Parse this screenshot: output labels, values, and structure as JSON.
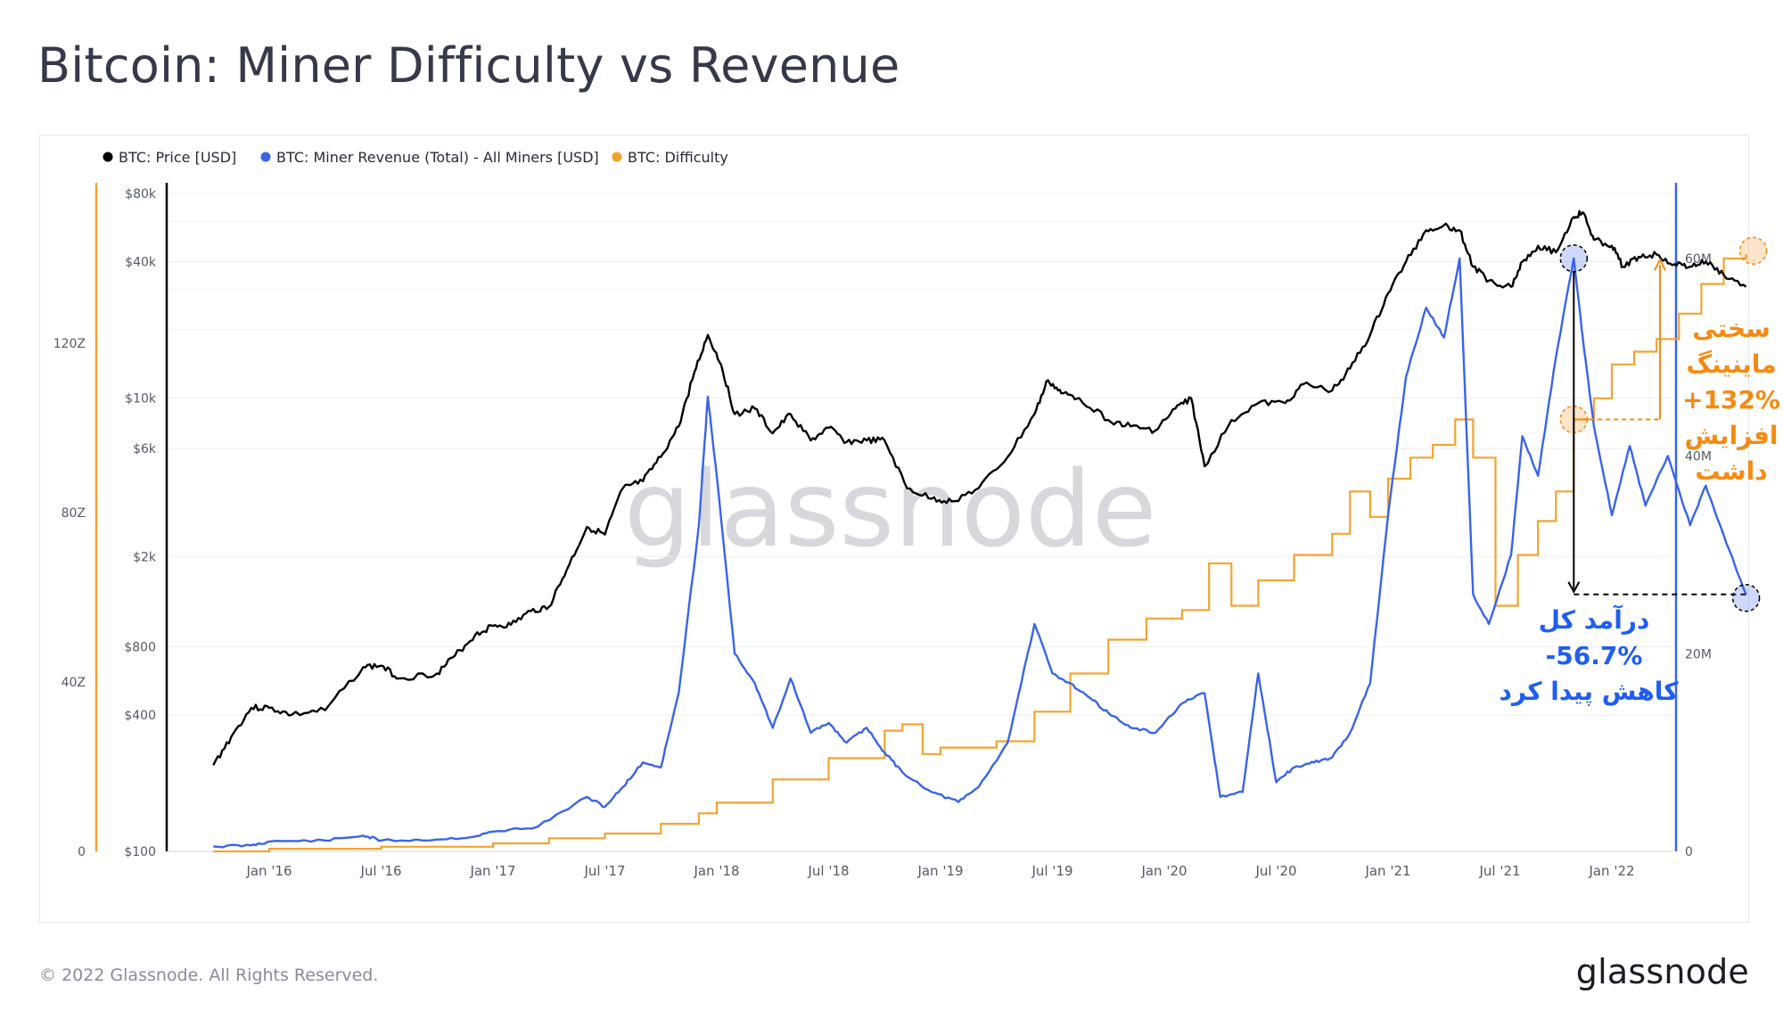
{
  "header": {
    "title": "Bitcoin: Miner Difficulty vs Revenue"
  },
  "footer": {
    "copyright": "© 2022 Glassnode. All Rights Reserved.",
    "brand": "glassnode"
  },
  "watermark": "glassnode",
  "colors": {
    "price": "#000000",
    "revenue": "#3a64e8",
    "difficulty": "#f2a430",
    "anno_orange": "#f58a12",
    "anno_blue": "#1f5ef0"
  },
  "chart_data": {
    "type": "line",
    "legend": [
      {
        "label": "BTC: Price [USD]",
        "color": "#000000"
      },
      {
        "label": "BTC: Miner Revenue (Total) - All Miners [USD]",
        "color": "#3a64e8"
      },
      {
        "label": "BTC: Difficulty",
        "color": "#f2a430"
      }
    ],
    "legend_position": "top-left",
    "x_ticks": [
      "Jan '16",
      "Jul '16",
      "Jan '17",
      "Jul '17",
      "Jan '18",
      "Jul '18",
      "Jan '19",
      "Jul '19",
      "Jan '20",
      "Jul '20",
      "Jan '21",
      "Jul '21",
      "Jan '22"
    ],
    "x_range": [
      2015.75,
      2022.7
    ],
    "price_axis": {
      "scale": "log",
      "range": [
        100,
        80000
      ],
      "ticks": [
        "$100",
        "$400",
        "$800",
        "$2k",
        "$6k",
        "$10k",
        "$40k",
        "$80k"
      ],
      "tick_values": [
        100,
        400,
        800,
        2000,
        6000,
        10000,
        40000,
        80000
      ]
    },
    "difficulty_axis": {
      "range": [
        0,
        160
      ],
      "ticks": [
        "0",
        "40Z",
        "80Z",
        "120Z"
      ],
      "tick_values": [
        0,
        40,
        80,
        120
      ]
    },
    "revenue_axis": {
      "range": [
        0,
        69
      ],
      "ticks": [
        "0",
        "20M",
        "40M",
        "60M"
      ],
      "tick_values": [
        0,
        20,
        40,
        60
      ]
    },
    "series": [
      {
        "name": "BTC: Price [USD]",
        "axis": "price",
        "points": [
          [
            2015.75,
            240
          ],
          [
            2015.83,
            320
          ],
          [
            2015.92,
            430
          ],
          [
            2016.0,
            430
          ],
          [
            2016.1,
            400
          ],
          [
            2016.25,
            420
          ],
          [
            2016.42,
            650
          ],
          [
            2016.5,
            660
          ],
          [
            2016.58,
            580
          ],
          [
            2016.75,
            610
          ],
          [
            2016.83,
            730
          ],
          [
            2016.92,
            900
          ],
          [
            2017.0,
            990
          ],
          [
            2017.08,
            1000
          ],
          [
            2017.17,
            1150
          ],
          [
            2017.25,
            1200
          ],
          [
            2017.33,
            1750
          ],
          [
            2017.42,
            2700
          ],
          [
            2017.5,
            2500
          ],
          [
            2017.58,
            4000
          ],
          [
            2017.67,
            4300
          ],
          [
            2017.75,
            5500
          ],
          [
            2017.83,
            7500
          ],
          [
            2017.9,
            13000
          ],
          [
            2017.96,
            19000
          ],
          [
            2018.02,
            14000
          ],
          [
            2018.08,
            8500
          ],
          [
            2018.17,
            9000
          ],
          [
            2018.25,
            7000
          ],
          [
            2018.33,
            8500
          ],
          [
            2018.42,
            6500
          ],
          [
            2018.5,
            7400
          ],
          [
            2018.58,
            6400
          ],
          [
            2018.67,
            6500
          ],
          [
            2018.75,
            6500
          ],
          [
            2018.85,
            4000
          ],
          [
            2018.96,
            3600
          ],
          [
            2019.05,
            3500
          ],
          [
            2019.17,
            4000
          ],
          [
            2019.3,
            5500
          ],
          [
            2019.42,
            8500
          ],
          [
            2019.48,
            12000
          ],
          [
            2019.54,
            10500
          ],
          [
            2019.62,
            10000
          ],
          [
            2019.75,
            8000
          ],
          [
            2019.85,
            7500
          ],
          [
            2019.96,
            7200
          ],
          [
            2020.05,
            9000
          ],
          [
            2020.12,
            10000
          ],
          [
            2020.18,
            5000
          ],
          [
            2020.3,
            8000
          ],
          [
            2020.42,
            9500
          ],
          [
            2020.54,
            9500
          ],
          [
            2020.62,
            11500
          ],
          [
            2020.75,
            10800
          ],
          [
            2020.83,
            13500
          ],
          [
            2020.92,
            19000
          ],
          [
            2021.0,
            29000
          ],
          [
            2021.08,
            40000
          ],
          [
            2021.17,
            55000
          ],
          [
            2021.25,
            58000
          ],
          [
            2021.32,
            55000
          ],
          [
            2021.38,
            38000
          ],
          [
            2021.45,
            33000
          ],
          [
            2021.55,
            31000
          ],
          [
            2021.6,
            40000
          ],
          [
            2021.67,
            47000
          ],
          [
            2021.75,
            44000
          ],
          [
            2021.83,
            63000
          ],
          [
            2021.87,
            66000
          ],
          [
            2021.92,
            50000
          ],
          [
            2022.0,
            47000
          ],
          [
            2022.05,
            38000
          ],
          [
            2022.12,
            42000
          ],
          [
            2022.2,
            43000
          ],
          [
            2022.28,
            39000
          ],
          [
            2022.35,
            38000
          ],
          [
            2022.42,
            40000
          ],
          [
            2022.5,
            35000
          ],
          [
            2022.6,
            31000
          ]
        ]
      },
      {
        "name": "BTC: Miner Revenue (Total) - All Miners [USD]",
        "axis": "revenue",
        "points": [
          [
            2015.75,
            0.5
          ],
          [
            2015.92,
            0.6
          ],
          [
            2016.0,
            1.0
          ],
          [
            2016.25,
            1.1
          ],
          [
            2016.42,
            1.6
          ],
          [
            2016.5,
            1.1
          ],
          [
            2016.75,
            1.2
          ],
          [
            2016.92,
            1.5
          ],
          [
            2017.0,
            2.0
          ],
          [
            2017.2,
            2.5
          ],
          [
            2017.42,
            5.5
          ],
          [
            2017.5,
            4.5
          ],
          [
            2017.58,
            6.5
          ],
          [
            2017.67,
            9.0
          ],
          [
            2017.75,
            8.5
          ],
          [
            2017.83,
            16.0
          ],
          [
            2017.92,
            33.0
          ],
          [
            2017.96,
            46.0
          ],
          [
            2018.0,
            38.0
          ],
          [
            2018.08,
            20.0
          ],
          [
            2018.17,
            17.0
          ],
          [
            2018.25,
            12.5
          ],
          [
            2018.33,
            17.5
          ],
          [
            2018.42,
            12.0
          ],
          [
            2018.5,
            13.0
          ],
          [
            2018.58,
            11.0
          ],
          [
            2018.67,
            12.5
          ],
          [
            2018.75,
            10.0
          ],
          [
            2018.83,
            8.0
          ],
          [
            2018.96,
            6.0
          ],
          [
            2019.08,
            5.0
          ],
          [
            2019.17,
            6.5
          ],
          [
            2019.3,
            11.0
          ],
          [
            2019.42,
            23.0
          ],
          [
            2019.5,
            18.0
          ],
          [
            2019.58,
            17.0
          ],
          [
            2019.67,
            15.5
          ],
          [
            2019.75,
            14.0
          ],
          [
            2019.85,
            12.5
          ],
          [
            2019.96,
            12.0
          ],
          [
            2020.08,
            15.0
          ],
          [
            2020.18,
            16.0
          ],
          [
            2020.25,
            5.5
          ],
          [
            2020.35,
            6.0
          ],
          [
            2020.42,
            18.0
          ],
          [
            2020.5,
            7.0
          ],
          [
            2020.58,
            8.5
          ],
          [
            2020.67,
            9.0
          ],
          [
            2020.75,
            9.5
          ],
          [
            2020.83,
            12.0
          ],
          [
            2020.92,
            17.0
          ],
          [
            2021.0,
            34.0
          ],
          [
            2021.08,
            48.0
          ],
          [
            2021.17,
            55.0
          ],
          [
            2021.25,
            52.0
          ],
          [
            2021.32,
            60.0
          ],
          [
            2021.38,
            26.0
          ],
          [
            2021.45,
            23.0
          ],
          [
            2021.55,
            30.0
          ],
          [
            2021.6,
            42.0
          ],
          [
            2021.67,
            38.0
          ],
          [
            2021.75,
            50.0
          ],
          [
            2021.83,
            60.0
          ],
          [
            2021.87,
            52.0
          ],
          [
            2021.92,
            43.0
          ],
          [
            2022.0,
            34.0
          ],
          [
            2022.08,
            41.0
          ],
          [
            2022.15,
            35.0
          ],
          [
            2022.25,
            40.0
          ],
          [
            2022.35,
            33.0
          ],
          [
            2022.42,
            37.0
          ],
          [
            2022.5,
            32.0
          ],
          [
            2022.6,
            26.0
          ]
        ]
      },
      {
        "name": "BTC: Difficulty",
        "axis": "difficulty",
        "points": [
          [
            2015.75,
            0.0
          ],
          [
            2016.0,
            0.6
          ],
          [
            2016.5,
            1.1
          ],
          [
            2017.0,
            1.9
          ],
          [
            2017.25,
            3.1
          ],
          [
            2017.5,
            4.2
          ],
          [
            2017.75,
            6.5
          ],
          [
            2017.92,
            9.0
          ],
          [
            2018.0,
            11.5
          ],
          [
            2018.25,
            17.0
          ],
          [
            2018.5,
            22.0
          ],
          [
            2018.75,
            28.5
          ],
          [
            2018.83,
            30.0
          ],
          [
            2018.92,
            23.0
          ],
          [
            2019.0,
            24.5
          ],
          [
            2019.25,
            26.0
          ],
          [
            2019.42,
            33.0
          ],
          [
            2019.58,
            42.0
          ],
          [
            2019.75,
            50.0
          ],
          [
            2019.92,
            55.0
          ],
          [
            2020.08,
            57.0
          ],
          [
            2020.2,
            68.0
          ],
          [
            2020.3,
            58.0
          ],
          [
            2020.42,
            64.0
          ],
          [
            2020.58,
            70.0
          ],
          [
            2020.75,
            75.0
          ],
          [
            2020.83,
            85.0
          ],
          [
            2020.92,
            79.0
          ],
          [
            2021.0,
            88.0
          ],
          [
            2021.1,
            93.0
          ],
          [
            2021.2,
            96.0
          ],
          [
            2021.3,
            102.0
          ],
          [
            2021.38,
            93.0
          ],
          [
            2021.48,
            58.0
          ],
          [
            2021.58,
            70.0
          ],
          [
            2021.67,
            78.0
          ],
          [
            2021.75,
            85.0
          ],
          [
            2021.83,
            102.0
          ],
          [
            2021.92,
            107.0
          ],
          [
            2022.0,
            115.0
          ],
          [
            2022.1,
            118.0
          ],
          [
            2022.2,
            121.0
          ],
          [
            2022.3,
            127.0
          ],
          [
            2022.4,
            134.0
          ],
          [
            2022.5,
            140.0
          ],
          [
            2022.6,
            141.0
          ]
        ]
      }
    ],
    "annotations": {
      "difficulty_text": [
        "سختی",
        "ماینینگ",
        "+132%",
        "افزایش",
        "داشت"
      ],
      "revenue_text": [
        "درآمد کل",
        "-56.7%",
        "کاهش پیدا کرد"
      ],
      "difficulty_change": "+132%",
      "revenue_change": "-56.7%"
    }
  }
}
